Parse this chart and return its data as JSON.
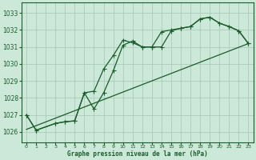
{
  "title": "Graphe pression niveau de la mer (hPa)",
  "bg_color": "#cce8d8",
  "grid_color": "#aaccbb",
  "line_color": "#1a5c2a",
  "xlim": [
    -0.5,
    23.5
  ],
  "ylim": [
    1025.4,
    1033.6
  ],
  "yticks": [
    1026,
    1027,
    1028,
    1029,
    1030,
    1031,
    1032,
    1033
  ],
  "xticks": [
    0,
    1,
    2,
    3,
    4,
    5,
    6,
    7,
    8,
    9,
    10,
    11,
    12,
    13,
    14,
    15,
    16,
    17,
    18,
    19,
    20,
    21,
    22,
    23
  ],
  "series1_x": [
    0,
    1,
    3,
    4,
    5,
    6,
    7,
    8,
    9,
    10,
    11,
    12,
    13,
    14,
    15,
    16,
    17,
    18,
    19,
    20,
    21,
    22,
    23
  ],
  "series1_y": [
    1027.0,
    1026.1,
    1026.5,
    1026.6,
    1026.65,
    1028.3,
    1027.35,
    1028.3,
    1029.6,
    1031.1,
    1031.35,
    1031.0,
    1031.0,
    1031.0,
    1031.95,
    1032.1,
    1032.2,
    1032.65,
    1032.75,
    1032.4,
    1032.2,
    1031.95,
    1031.2
  ],
  "series2_x": [
    0,
    1,
    3,
    4,
    5,
    6,
    7,
    8,
    9,
    10,
    11,
    12,
    13,
    14,
    15,
    16,
    17,
    18,
    19,
    20,
    21,
    22,
    23
  ],
  "series2_y": [
    1027.0,
    1026.1,
    1026.5,
    1026.6,
    1026.65,
    1028.3,
    1028.4,
    1029.7,
    1030.5,
    1031.4,
    1031.25,
    1031.0,
    1031.0,
    1031.9,
    1032.0,
    1032.1,
    1032.2,
    1032.65,
    1032.75,
    1032.4,
    1032.2,
    1031.95,
    1031.2
  ],
  "series3_x": [
    0,
    23
  ],
  "series3_y": [
    1026.15,
    1031.2
  ]
}
